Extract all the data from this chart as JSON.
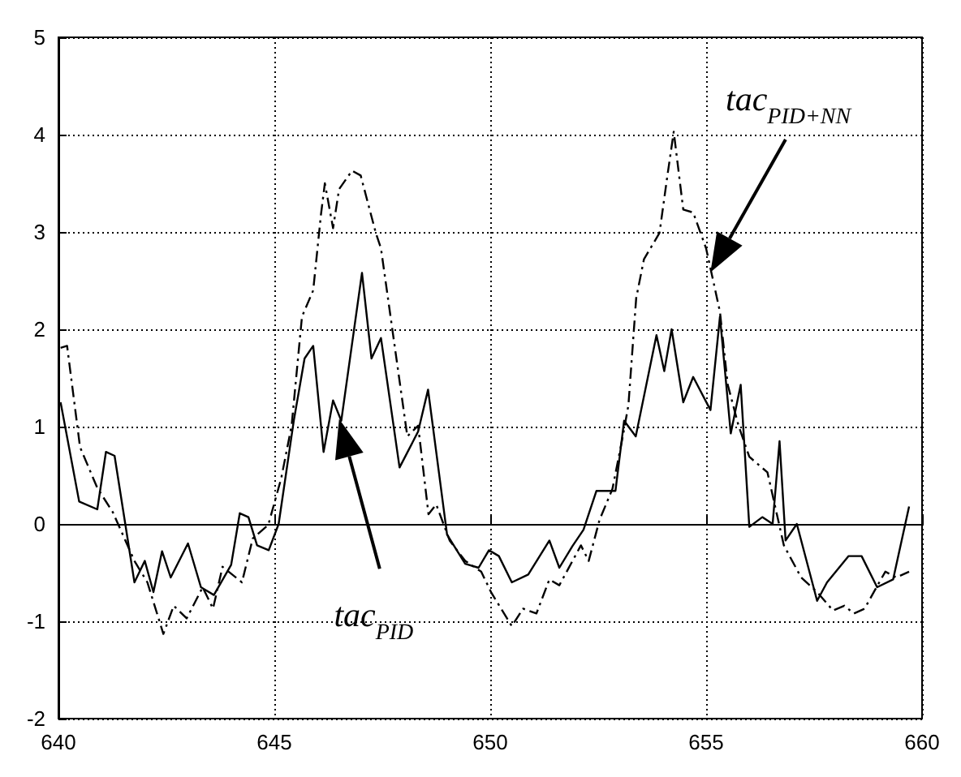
{
  "chart_data": {
    "type": "line",
    "xlim": [
      640,
      660
    ],
    "ylim": [
      -2,
      5
    ],
    "xticks": [
      640,
      645,
      650,
      655,
      660
    ],
    "yticks": [
      -2,
      -1,
      0,
      1,
      2,
      3,
      4,
      5
    ],
    "grid": true,
    "marker": "none",
    "series": [
      {
        "color": "#000000",
        "line_style": "solid",
        "x": [
          640.05,
          640.48,
          640.9,
          641.1,
          641.3,
          641.76,
          642.0,
          642.2,
          642.4,
          642.6,
          643.0,
          643.3,
          643.6,
          644.0,
          644.2,
          644.4,
          644.6,
          644.87,
          645.1,
          645.45,
          645.7,
          645.9,
          646.14,
          646.36,
          646.55,
          647.03,
          647.25,
          647.47,
          647.9,
          648.33,
          648.56,
          649.0,
          649.42,
          649.73,
          649.97,
          650.2,
          650.5,
          650.88,
          651.37,
          651.6,
          651.9,
          652.16,
          652.46,
          652.9,
          653.1,
          653.37,
          653.85,
          654.03,
          654.2,
          654.47,
          654.7,
          655.1,
          655.32,
          655.57,
          655.8,
          656.0,
          656.3,
          656.54,
          656.7,
          656.84,
          657.1,
          657.57,
          657.8,
          658.3,
          658.6,
          658.96,
          659.33,
          659.7
        ],
        "values": [
          1.25,
          0.23,
          0.15,
          0.74,
          0.7,
          -0.6,
          -0.38,
          -0.7,
          -0.28,
          -0.55,
          -0.2,
          -0.65,
          -0.73,
          -0.42,
          0.11,
          0.07,
          -0.22,
          -0.27,
          0.0,
          1.06,
          1.7,
          1.83,
          0.74,
          1.27,
          1.06,
          2.58,
          1.7,
          1.91,
          0.58,
          0.95,
          1.38,
          -0.11,
          -0.41,
          -0.45,
          -0.27,
          -0.33,
          -0.6,
          -0.52,
          -0.17,
          -0.45,
          -0.23,
          -0.06,
          0.34,
          0.34,
          1.06,
          0.9,
          1.94,
          1.57,
          2.0,
          1.25,
          1.51,
          1.17,
          2.13,
          0.93,
          1.43,
          -0.03,
          0.07,
          0.0,
          0.85,
          -0.17,
          0.0,
          -0.79,
          -0.6,
          -0.33,
          -0.33,
          -0.65,
          -0.57,
          0.18
        ]
      },
      {
        "color": "#000000",
        "line_style": "dashed",
        "x": [
          640.05,
          640.2,
          640.5,
          640.9,
          641.26,
          641.76,
          642.06,
          642.43,
          642.67,
          642.97,
          643.34,
          643.58,
          643.8,
          644.25,
          644.5,
          644.86,
          645.16,
          645.4,
          645.64,
          645.9,
          646.08,
          646.17,
          646.36,
          646.5,
          646.8,
          647.0,
          647.35,
          647.47,
          648.08,
          648.33,
          648.57,
          648.75,
          649.06,
          649.42,
          649.79,
          650.03,
          650.5,
          650.76,
          651.07,
          651.37,
          651.6,
          652.1,
          652.28,
          652.53,
          652.83,
          653.07,
          653.2,
          653.38,
          653.56,
          653.92,
          654.1,
          654.25,
          654.47,
          654.7,
          655.0,
          655.32,
          655.5,
          655.75,
          656.0,
          656.42,
          656.8,
          657.2,
          657.57,
          657.94,
          658.2,
          658.42,
          658.67,
          658.97,
          659.15,
          659.4,
          659.7
        ],
        "values": [
          1.81,
          1.83,
          0.79,
          0.37,
          0.12,
          -0.38,
          -0.6,
          -1.13,
          -0.84,
          -0.97,
          -0.65,
          -0.87,
          -0.44,
          -0.6,
          -0.15,
          -0.01,
          0.47,
          1.01,
          2.13,
          2.4,
          3.18,
          3.5,
          3.04,
          3.44,
          3.63,
          3.58,
          2.99,
          2.83,
          0.9,
          1.01,
          0.1,
          0.2,
          -0.17,
          -0.38,
          -0.49,
          -0.71,
          -1.05,
          -0.87,
          -0.92,
          -0.57,
          -0.63,
          -0.22,
          -0.38,
          0.04,
          0.36,
          0.9,
          1.22,
          2.32,
          2.72,
          2.99,
          3.57,
          4.03,
          3.23,
          3.2,
          2.83,
          2.18,
          1.43,
          1.01,
          0.69,
          0.53,
          -0.22,
          -0.55,
          -0.7,
          -0.89,
          -0.84,
          -0.92,
          -0.87,
          -0.63,
          -0.49,
          -0.55,
          -0.49
        ]
      }
    ],
    "annotations": [
      "tac$_{PID}$",
      "tac$_{PID+NN}$"
    ]
  }
}
